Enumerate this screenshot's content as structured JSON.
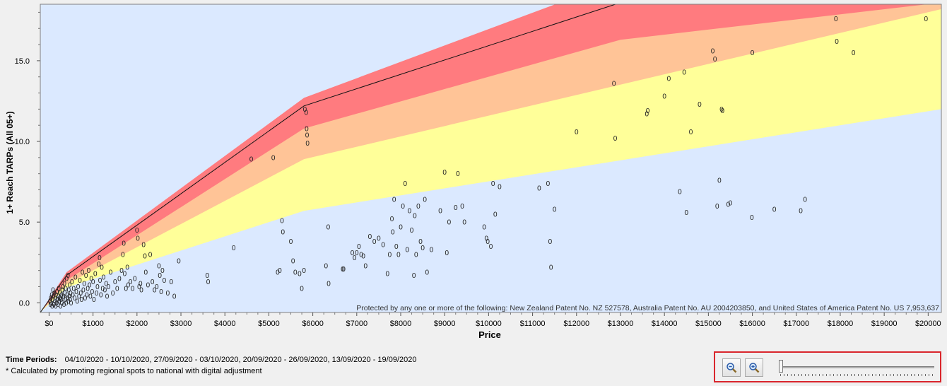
{
  "chart_data": {
    "type": "scatter",
    "xlabel": "Price",
    "ylabel": "1+ Reach TARPs (All 05+)",
    "xlim": [
      -200,
      20300
    ],
    "ylim": [
      -0.6,
      18.5
    ],
    "x_ticks": [
      0,
      1000,
      2000,
      3000,
      4000,
      5000,
      6000,
      7000,
      8000,
      9000,
      10000,
      11000,
      12000,
      13000,
      14000,
      15000,
      16000,
      17000,
      18000,
      19000,
      20000
    ],
    "x_tick_labels": [
      "$0",
      "$1000",
      "$2000",
      "$3000",
      "$4000",
      "$5000",
      "$6000",
      "$7000",
      "$8000",
      "$9000",
      "$10000",
      "$11000",
      "$12000",
      "$13000",
      "$14000",
      "$15000",
      "$16000",
      "$17000",
      "$18000",
      "$19000",
      "$20000"
    ],
    "y_ticks": [
      0,
      5,
      10,
      15
    ],
    "y_tick_labels": [
      "0.0",
      "5.0",
      "10.0",
      "15.0"
    ],
    "marker": "0",
    "bands": [
      {
        "name": "red",
        "color": "#ff7b7f",
        "upper": [
          [
            -200,
            -0.6
          ],
          [
            400,
            1.9
          ],
          [
            5800,
            12.7
          ],
          [
            13000,
            20.0
          ],
          [
            20300,
            20.0
          ]
        ]
      },
      {
        "name": "orange",
        "color": "#ffc497",
        "upper": [
          [
            -200,
            -0.6
          ],
          [
            400,
            1.4
          ],
          [
            5800,
            10.8
          ],
          [
            13000,
            16.3
          ],
          [
            20300,
            18.6
          ]
        ]
      },
      {
        "name": "yellow",
        "color": "#ffff99",
        "upper": [
          [
            -200,
            -0.6
          ],
          [
            400,
            1.15
          ],
          [
            5800,
            8.9
          ],
          [
            20300,
            18.2
          ]
        ]
      },
      {
        "name": "blue",
        "color": "#dbe9ff",
        "upper": [
          [
            -200,
            -0.6
          ],
          [
            400,
            0.95
          ],
          [
            5800,
            5.7
          ],
          [
            20300,
            12.0
          ]
        ]
      }
    ],
    "trend_line": [
      [
        -200,
        -0.6
      ],
      [
        400,
        1.7
      ],
      [
        5800,
        12.2
      ],
      [
        13000,
        18.6
      ]
    ],
    "points": [
      [
        20,
        0.1
      ],
      [
        30,
        -0.1
      ],
      [
        40,
        0.3
      ],
      [
        50,
        0.0
      ],
      [
        60,
        0.5
      ],
      [
        70,
        -0.2
      ],
      [
        80,
        0.2
      ],
      [
        90,
        0.8
      ],
      [
        100,
        0.4
      ],
      [
        110,
        -0.1
      ],
      [
        120,
        0.6
      ],
      [
        130,
        0.1
      ],
      [
        140,
        0.3
      ],
      [
        150,
        -0.2
      ],
      [
        160,
        0.5
      ],
      [
        170,
        0.0
      ],
      [
        180,
        0.7
      ],
      [
        190,
        0.2
      ],
      [
        200,
        -0.1
      ],
      [
        210,
        0.4
      ],
      [
        220,
        0.9
      ],
      [
        230,
        0.1
      ],
      [
        240,
        0.3
      ],
      [
        250,
        0.6
      ],
      [
        260,
        -0.2
      ],
      [
        270,
        0.2
      ],
      [
        280,
        0.5
      ],
      [
        290,
        0.0
      ],
      [
        300,
        0.8
      ],
      [
        310,
        1.0
      ],
      [
        320,
        0.3
      ],
      [
        330,
        0.4
      ],
      [
        340,
        -0.1
      ],
      [
        350,
        1.2
      ],
      [
        360,
        0.6
      ],
      [
        370,
        0.2
      ],
      [
        380,
        0.9
      ],
      [
        390,
        0.0
      ],
      [
        400,
        1.5
      ],
      [
        410,
        0.5
      ],
      [
        420,
        0.3
      ],
      [
        430,
        1.7
      ],
      [
        440,
        0.1
      ],
      [
        450,
        0.8
      ],
      [
        460,
        0.4
      ],
      [
        470,
        1.1
      ],
      [
        480,
        0.2
      ],
      [
        490,
        0.6
      ],
      [
        500,
        0.0
      ],
      [
        520,
        1.3
      ],
      [
        540,
        0.5
      ],
      [
        560,
        0.9
      ],
      [
        580,
        0.3
      ],
      [
        600,
        1.6
      ],
      [
        620,
        0.7
      ],
      [
        640,
        0.1
      ],
      [
        660,
        1.0
      ],
      [
        680,
        0.4
      ],
      [
        700,
        1.4
      ],
      [
        720,
        0.6
      ],
      [
        740,
        0.2
      ],
      [
        760,
        1.9
      ],
      [
        780,
        0.8
      ],
      [
        800,
        1.2
      ],
      [
        820,
        0.3
      ],
      [
        840,
        1.7
      ],
      [
        860,
        0.5
      ],
      [
        880,
        0.9
      ],
      [
        900,
        2.0
      ],
      [
        920,
        1.1
      ],
      [
        940,
        0.4
      ],
      [
        960,
        1.5
      ],
      [
        980,
        0.7
      ],
      [
        1000,
        1.3
      ],
      [
        1020,
        0.2
      ],
      [
        1050,
        1.8
      ],
      [
        1080,
        0.6
      ],
      [
        1100,
        1.0
      ],
      [
        1130,
        2.4
      ],
      [
        1150,
        2.8
      ],
      [
        1160,
        1.4
      ],
      [
        1180,
        0.5
      ],
      [
        1200,
        2.2
      ],
      [
        1220,
        0.9
      ],
      [
        1240,
        1.6
      ],
      [
        1270,
        0.8
      ],
      [
        1300,
        1.2
      ],
      [
        1320,
        0.4
      ],
      [
        1350,
        1.0
      ],
      [
        1400,
        1.9
      ],
      [
        1450,
        0.6
      ],
      [
        1500,
        1.3
      ],
      [
        1550,
        0.9
      ],
      [
        1600,
        1.5
      ],
      [
        1650,
        2.0
      ],
      [
        1680,
        3.0
      ],
      [
        1700,
        3.7
      ],
      [
        1720,
        1.8
      ],
      [
        1750,
        0.9
      ],
      [
        1780,
        2.2
      ],
      [
        1800,
        1.1
      ],
      [
        1850,
        1.3
      ],
      [
        1900,
        0.9
      ],
      [
        1950,
        1.5
      ],
      [
        2000,
        4.5
      ],
      [
        2020,
        4.0
      ],
      [
        2050,
        1.0
      ],
      [
        2080,
        1.2
      ],
      [
        2100,
        0.8
      ],
      [
        2150,
        3.6
      ],
      [
        2180,
        2.9
      ],
      [
        2200,
        1.9
      ],
      [
        2250,
        1.1
      ],
      [
        2300,
        3.0
      ],
      [
        2350,
        1.3
      ],
      [
        2400,
        0.8
      ],
      [
        2450,
        1.0
      ],
      [
        2500,
        2.3
      ],
      [
        2520,
        1.7
      ],
      [
        2550,
        0.7
      ],
      [
        2580,
        2.0
      ],
      [
        2620,
        1.4
      ],
      [
        2700,
        0.6
      ],
      [
        2780,
        1.3
      ],
      [
        2850,
        0.4
      ],
      [
        2950,
        2.6
      ],
      [
        3600,
        1.7
      ],
      [
        3620,
        1.3
      ],
      [
        4200,
        3.4
      ],
      [
        4600,
        8.9
      ],
      [
        5100,
        9.0
      ],
      [
        5200,
        1.9
      ],
      [
        5300,
        5.1
      ],
      [
        5320,
        4.4
      ],
      [
        5250,
        2.0
      ],
      [
        5500,
        3.8
      ],
      [
        5550,
        2.6
      ],
      [
        5600,
        1.9
      ],
      [
        5700,
        1.8
      ],
      [
        5800,
        2.0
      ],
      [
        5750,
        0.9
      ],
      [
        5850,
        11.8
      ],
      [
        5860,
        10.8
      ],
      [
        5870,
        10.4
      ],
      [
        5880,
        9.9
      ],
      [
        5820,
        12.0
      ],
      [
        6300,
        2.3
      ],
      [
        6350,
        4.7
      ],
      [
        6360,
        1.2
      ],
      [
        6700,
        2.1
      ],
      [
        6680,
        2.1
      ],
      [
        6900,
        3.1
      ],
      [
        6950,
        2.8
      ],
      [
        7000,
        3.1
      ],
      [
        7050,
        3.5
      ],
      [
        7100,
        3.0
      ],
      [
        7150,
        2.9
      ],
      [
        7200,
        2.3
      ],
      [
        7300,
        4.1
      ],
      [
        7400,
        3.8
      ],
      [
        7500,
        4.0
      ],
      [
        7600,
        3.6
      ],
      [
        7700,
        1.8
      ],
      [
        7750,
        3.0
      ],
      [
        7800,
        5.2
      ],
      [
        7850,
        6.4
      ],
      [
        7820,
        4.4
      ],
      [
        7900,
        3.5
      ],
      [
        7950,
        3.0
      ],
      [
        8000,
        4.7
      ],
      [
        8050,
        6.0
      ],
      [
        8100,
        7.4
      ],
      [
        8150,
        3.3
      ],
      [
        8200,
        5.7
      ],
      [
        8250,
        4.5
      ],
      [
        8300,
        1.7
      ],
      [
        8320,
        5.4
      ],
      [
        8350,
        3.0
      ],
      [
        8400,
        6.0
      ],
      [
        8450,
        3.8
      ],
      [
        8500,
        3.4
      ],
      [
        8550,
        6.4
      ],
      [
        8600,
        1.9
      ],
      [
        8700,
        3.3
      ],
      [
        8900,
        5.7
      ],
      [
        9000,
        8.1
      ],
      [
        9050,
        3.1
      ],
      [
        9100,
        5.0
      ],
      [
        9250,
        5.9
      ],
      [
        9300,
        8.0
      ],
      [
        9400,
        6.0
      ],
      [
        9450,
        5.0
      ],
      [
        9900,
        4.7
      ],
      [
        9950,
        4.0
      ],
      [
        9980,
        3.8
      ],
      [
        10050,
        3.5
      ],
      [
        10100,
        7.4
      ],
      [
        10150,
        5.5
      ],
      [
        10250,
        7.2
      ],
      [
        11150,
        7.1
      ],
      [
        11350,
        7.4
      ],
      [
        11400,
        3.8
      ],
      [
        11420,
        2.2
      ],
      [
        11500,
        5.8
      ],
      [
        12000,
        10.6
      ],
      [
        12850,
        13.6
      ],
      [
        12880,
        10.2
      ],
      [
        13600,
        11.7
      ],
      [
        13620,
        11.9
      ],
      [
        14000,
        12.8
      ],
      [
        14100,
        13.9
      ],
      [
        14350,
        6.9
      ],
      [
        14450,
        14.3
      ],
      [
        14500,
        5.6
      ],
      [
        14600,
        10.6
      ],
      [
        14800,
        12.3
      ],
      [
        15100,
        15.6
      ],
      [
        15150,
        15.1
      ],
      [
        15200,
        6.0
      ],
      [
        15250,
        7.6
      ],
      [
        15300,
        12.0
      ],
      [
        15320,
        11.9
      ],
      [
        15450,
        6.1
      ],
      [
        15500,
        6.2
      ],
      [
        15990,
        5.3
      ],
      [
        16000,
        15.5
      ],
      [
        16500,
        5.8
      ],
      [
        17100,
        5.7
      ],
      [
        17200,
        6.4
      ],
      [
        17900,
        17.6
      ],
      [
        17920,
        16.2
      ],
      [
        18300,
        15.5
      ],
      [
        19950,
        17.6
      ]
    ],
    "notice": "Protected by any one or more of the following: New Zealand Patent No. NZ 527578, Australia Patent No. AU 2004203850, and United States of America Patent No. US 7,953,637"
  },
  "footer": {
    "periods_label": "Time Periods:",
    "periods_value": "04/10/2020 - 10/10/2020, 27/09/2020 - 03/10/2020, 20/09/2020 - 26/09/2020, 13/09/2020 - 19/09/2020",
    "note": "* Calculated by promoting regional spots to national with digital adjustment"
  },
  "controls": {
    "zoom_out_label": "zoom-out",
    "zoom_in_label": "zoom-in",
    "zoom_level": 0
  }
}
